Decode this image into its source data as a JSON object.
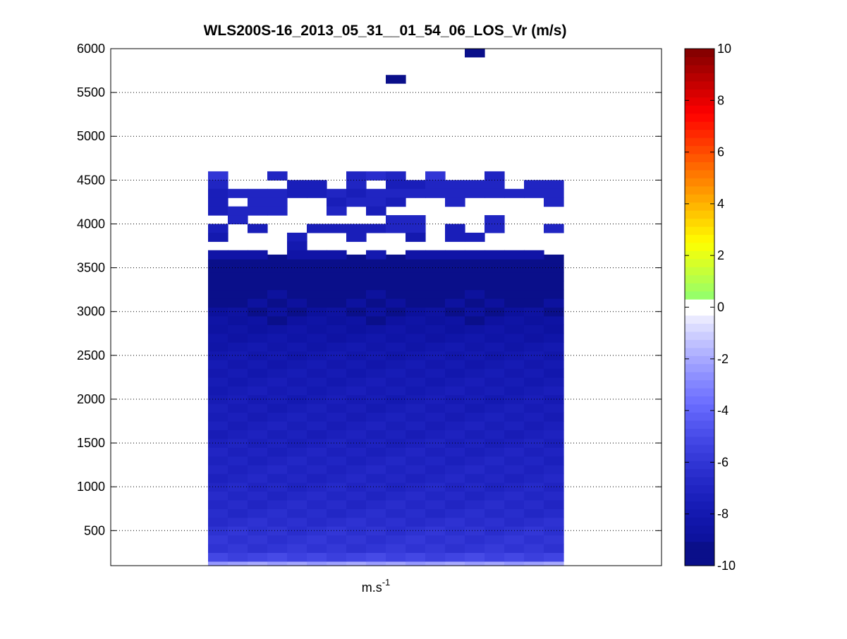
{
  "chart_data": {
    "type": "heatmap",
    "title": "WLS200S-16_2013_05_31__01_54_06_LOS_Vr (m/s)",
    "xlabel": "m.s",
    "xlabel_superscript": "-1",
    "ylabel": "",
    "ylim": [
      100,
      6000
    ],
    "y_ticks": [
      500,
      1000,
      1500,
      2000,
      2500,
      3000,
      3500,
      4000,
      4500,
      5000,
      5500,
      6000
    ],
    "y_tick_labels": [
      "500",
      "1000",
      "1500",
      "2000",
      "2500",
      "3000",
      "3500",
      "4000",
      "4500",
      "5000",
      "5500",
      "6000"
    ],
    "grid": "horizontal dotted",
    "colorbar": {
      "position": "right",
      "range": [
        -10,
        10
      ],
      "ticks": [
        -10,
        -8,
        -6,
        -4,
        -2,
        0,
        2,
        4,
        6,
        8,
        10
      ],
      "tick_labels": [
        "-10",
        "-8",
        "-6",
        "-4",
        "-2",
        "0",
        "2",
        "4",
        "6",
        "8",
        "10"
      ],
      "colormap": "blue-white-red (jet-like)"
    },
    "profile_range_gates_m": {
      "start": 100,
      "end": 3600,
      "step": 100
    },
    "profile_Vr_by_altitude": {
      "altitude": [
        100,
        200,
        300,
        400,
        500,
        600,
        700,
        800,
        900,
        1000,
        1100,
        1200,
        1300,
        1400,
        1500,
        1600,
        1700,
        1800,
        1900,
        2000,
        2100,
        2200,
        2300,
        2400,
        2500,
        2600,
        2700,
        2800,
        2900,
        3000,
        3100,
        3200,
        3300,
        3400,
        3500,
        3600
      ],
      "Vr": [
        -2.2,
        -5.3,
        -6.0,
        -6.1,
        -6.2,
        -6.4,
        -6.6,
        -6.7,
        -6.8,
        -6.9,
        -7.0,
        -7.0,
        -7.1,
        -7.2,
        -7.3,
        -7.4,
        -7.4,
        -7.5,
        -7.6,
        -7.7,
        -7.7,
        -7.8,
        -7.9,
        -8.0,
        -8.1,
        -8.2,
        -8.4,
        -8.6,
        -8.8,
        -9.0,
        -9.1,
        -9.2,
        -9.3,
        -9.3,
        -9.4,
        -9.4
      ]
    },
    "scattered_cells_above_3600m": "sparse cells between 3700 and 4600 m with Vr about -5 to -9, plus isolated cells near 5650 m and 5950 m about -9.5"
  }
}
